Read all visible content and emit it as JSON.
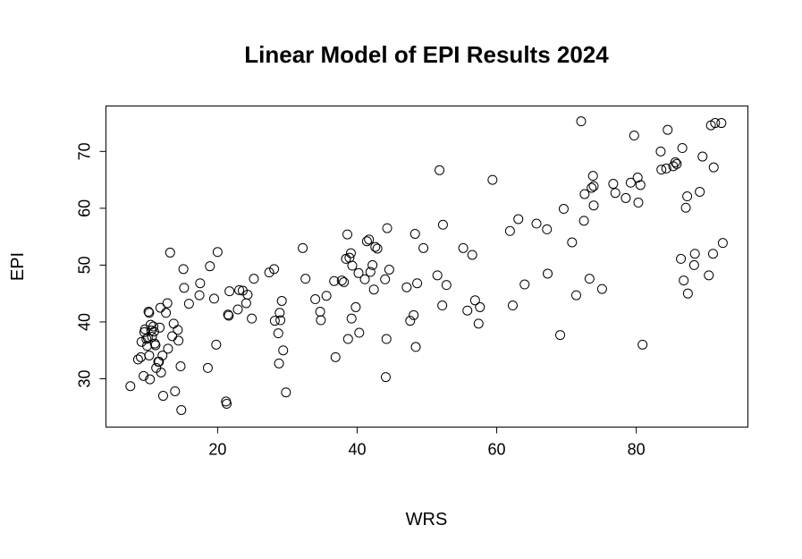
{
  "chart_data": {
    "type": "scatter",
    "title": "Linear Model of EPI Results 2024",
    "xlabel": "WRS",
    "ylabel": "EPI",
    "xlim": [
      4,
      96
    ],
    "ylim": [
      21.5,
      78
    ],
    "xticks": [
      20,
      40,
      60,
      80
    ],
    "yticks": [
      30,
      40,
      50,
      60,
      70
    ],
    "xtick_labels": [
      "20",
      "40",
      "60",
      "80"
    ],
    "ytick_labels": [
      "30",
      "40",
      "50",
      "60",
      "70"
    ],
    "grid": false,
    "marker": "open-circle",
    "color": "#000000",
    "points": [
      [
        7.5,
        28.7
      ],
      [
        8.6,
        33.4
      ],
      [
        9.0,
        33.8
      ],
      [
        9.1,
        36.5
      ],
      [
        9.4,
        30.5
      ],
      [
        9.5,
        38.2
      ],
      [
        9.6,
        38.7
      ],
      [
        9.8,
        37.0
      ],
      [
        9.9,
        35.8
      ],
      [
        10.0,
        37.2
      ],
      [
        10.1,
        41.8
      ],
      [
        10.2,
        41.6
      ],
      [
        10.2,
        34.1
      ],
      [
        10.3,
        29.9
      ],
      [
        10.4,
        39.5
      ],
      [
        10.5,
        38.5
      ],
      [
        10.6,
        37.4
      ],
      [
        10.8,
        39.2
      ],
      [
        10.9,
        38.3
      ],
      [
        11.0,
        36.2
      ],
      [
        11.1,
        35.9
      ],
      [
        11.2,
        31.9
      ],
      [
        11.5,
        33.0
      ],
      [
        11.6,
        33.0
      ],
      [
        11.7,
        39.0
      ],
      [
        11.8,
        42.5
      ],
      [
        11.9,
        31.1
      ],
      [
        12.1,
        34.1
      ],
      [
        12.2,
        27.0
      ],
      [
        12.6,
        41.6
      ],
      [
        12.8,
        43.3
      ],
      [
        12.9,
        35.3
      ],
      [
        13.2,
        52.2
      ],
      [
        13.5,
        37.5
      ],
      [
        13.7,
        39.7
      ],
      [
        13.9,
        27.8
      ],
      [
        14.3,
        38.6
      ],
      [
        14.4,
        36.7
      ],
      [
        14.7,
        32.2
      ],
      [
        14.8,
        24.5
      ],
      [
        15.1,
        49.3
      ],
      [
        15.2,
        46.0
      ],
      [
        15.9,
        43.2
      ],
      [
        17.4,
        44.7
      ],
      [
        17.5,
        46.8
      ],
      [
        18.6,
        31.9
      ],
      [
        18.9,
        49.8
      ],
      [
        19.5,
        44.1
      ],
      [
        19.8,
        36.0
      ],
      [
        20.0,
        52.3
      ],
      [
        21.2,
        26.0
      ],
      [
        21.3,
        25.6
      ],
      [
        21.5,
        41.3
      ],
      [
        21.6,
        41.1
      ],
      [
        21.7,
        45.4
      ],
      [
        22.9,
        42.2
      ],
      [
        23.1,
        45.6
      ],
      [
        23.6,
        45.5
      ],
      [
        24.1,
        43.3
      ],
      [
        24.3,
        44.8
      ],
      [
        24.9,
        40.6
      ],
      [
        25.2,
        47.6
      ],
      [
        27.4,
        48.7
      ],
      [
        28.1,
        49.3
      ],
      [
        28.2,
        40.2
      ],
      [
        28.7,
        38.0
      ],
      [
        28.8,
        32.7
      ],
      [
        28.9,
        41.6
      ],
      [
        29.0,
        40.3
      ],
      [
        29.2,
        43.7
      ],
      [
        29.4,
        35.0
      ],
      [
        29.8,
        27.6
      ],
      [
        32.2,
        53.0
      ],
      [
        32.6,
        47.6
      ],
      [
        34.0,
        44.0
      ],
      [
        34.7,
        41.8
      ],
      [
        34.8,
        40.3
      ],
      [
        35.6,
        44.6
      ],
      [
        36.7,
        47.2
      ],
      [
        36.9,
        33.8
      ],
      [
        37.8,
        47.3
      ],
      [
        38.1,
        47.0
      ],
      [
        38.4,
        51.1
      ],
      [
        38.6,
        55.4
      ],
      [
        38.7,
        37.0
      ],
      [
        38.9,
        51.3
      ],
      [
        39.1,
        52.1
      ],
      [
        39.2,
        40.6
      ],
      [
        39.3,
        49.9
      ],
      [
        39.8,
        42.6
      ],
      [
        40.2,
        48.6
      ],
      [
        40.3,
        38.1
      ],
      [
        41.1,
        47.5
      ],
      [
        41.4,
        54.2
      ],
      [
        41.7,
        54.5
      ],
      [
        41.9,
        48.8
      ],
      [
        42.2,
        50.0
      ],
      [
        42.4,
        45.7
      ],
      [
        42.6,
        53.2
      ],
      [
        42.9,
        52.9
      ],
      [
        44.0,
        47.5
      ],
      [
        44.1,
        30.3
      ],
      [
        44.2,
        37.0
      ],
      [
        44.3,
        56.5
      ],
      [
        44.6,
        49.2
      ],
      [
        47.1,
        46.1
      ],
      [
        47.6,
        40.2
      ],
      [
        48.1,
        41.2
      ],
      [
        48.3,
        55.5
      ],
      [
        48.4,
        35.6
      ],
      [
        48.6,
        46.8
      ],
      [
        49.5,
        53.0
      ],
      [
        51.5,
        48.2
      ],
      [
        51.8,
        66.7
      ],
      [
        52.2,
        42.9
      ],
      [
        52.3,
        57.1
      ],
      [
        52.8,
        46.5
      ],
      [
        55.2,
        53.0
      ],
      [
        55.8,
        42.0
      ],
      [
        56.5,
        51.8
      ],
      [
        56.9,
        43.8
      ],
      [
        57.4,
        39.7
      ],
      [
        57.6,
        42.6
      ],
      [
        59.4,
        65.0
      ],
      [
        61.9,
        56.0
      ],
      [
        62.3,
        42.9
      ],
      [
        63.1,
        58.1
      ],
      [
        64.0,
        46.6
      ],
      [
        65.7,
        57.3
      ],
      [
        67.2,
        56.3
      ],
      [
        67.3,
        48.5
      ],
      [
        69.1,
        37.7
      ],
      [
        69.6,
        59.9
      ],
      [
        70.8,
        54.0
      ],
      [
        71.4,
        44.7
      ],
      [
        72.1,
        75.3
      ],
      [
        72.5,
        57.8
      ],
      [
        72.6,
        62.5
      ],
      [
        73.3,
        47.6
      ],
      [
        73.6,
        63.6
      ],
      [
        73.8,
        65.7
      ],
      [
        73.9,
        60.5
      ],
      [
        73.9,
        63.9
      ],
      [
        75.1,
        45.8
      ],
      [
        76.7,
        64.3
      ],
      [
        77.0,
        62.7
      ],
      [
        78.5,
        61.8
      ],
      [
        79.2,
        64.5
      ],
      [
        79.7,
        72.8
      ],
      [
        80.2,
        65.4
      ],
      [
        80.3,
        61.0
      ],
      [
        80.6,
        64.1
      ],
      [
        80.9,
        36.0
      ],
      [
        83.5,
        70.0
      ],
      [
        83.6,
        66.8
      ],
      [
        84.3,
        67.0
      ],
      [
        84.5,
        73.8
      ],
      [
        85.3,
        67.4
      ],
      [
        85.6,
        68.1
      ],
      [
        85.8,
        67.8
      ],
      [
        86.4,
        51.1
      ],
      [
        86.6,
        70.6
      ],
      [
        86.8,
        47.3
      ],
      [
        87.1,
        60.1
      ],
      [
        87.3,
        62.1
      ],
      [
        87.4,
        45.0
      ],
      [
        88.3,
        50.0
      ],
      [
        88.4,
        52.0
      ],
      [
        89.1,
        62.9
      ],
      [
        89.5,
        69.1
      ],
      [
        90.4,
        48.2
      ],
      [
        90.7,
        74.6
      ],
      [
        91.0,
        52.0
      ],
      [
        91.1,
        67.2
      ],
      [
        91.3,
        75.0
      ],
      [
        92.2,
        75.0
      ],
      [
        92.4,
        53.9
      ]
    ]
  }
}
